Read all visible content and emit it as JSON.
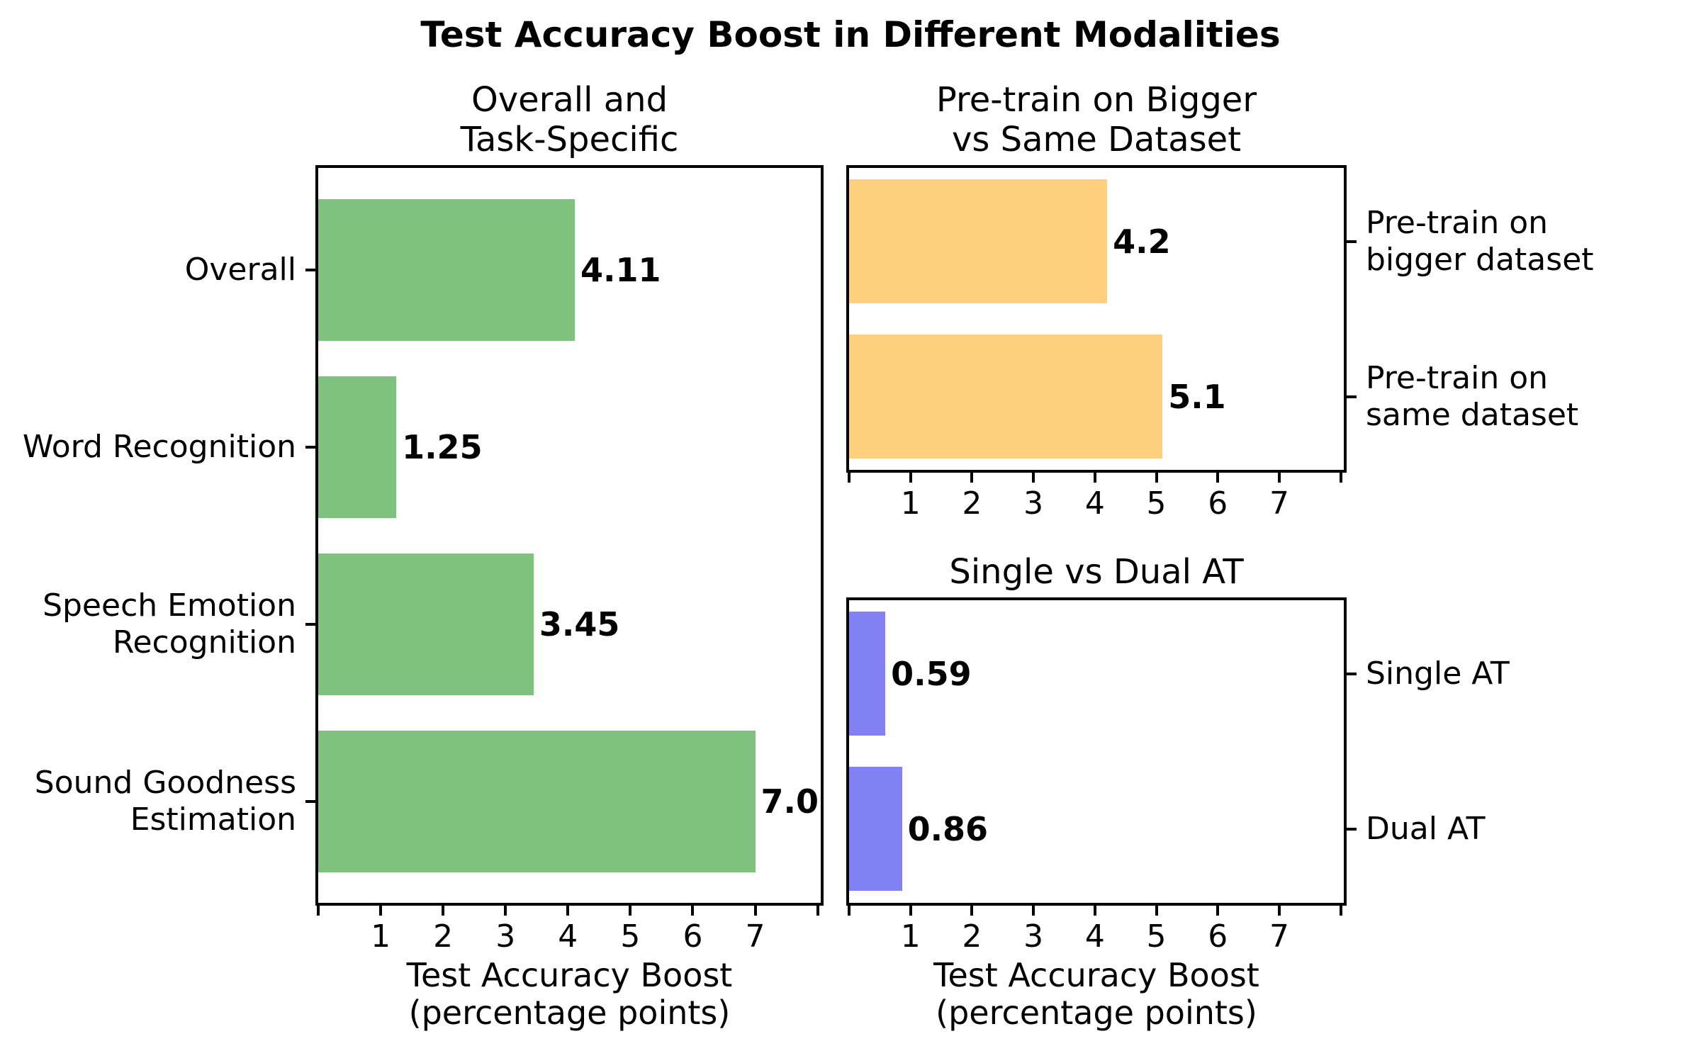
{
  "figure": {
    "title": "Test Accuracy Boost in Different Modalities",
    "background_color": "#ffffff",
    "text_color": "#000000"
  },
  "chart_data": [
    {
      "id": "overall-task-specific",
      "type": "bar",
      "orientation": "horizontal",
      "title_lines": [
        "Overall and",
        "Task-Specific"
      ],
      "categories": [
        [
          "Overall"
        ],
        [
          "Word Recognition"
        ],
        [
          "Speech Emotion",
          "Recognition"
        ],
        [
          "Sound Goodness",
          "Estimation"
        ]
      ],
      "values": [
        4.11,
        1.25,
        3.45,
        7.0
      ],
      "value_labels": [
        "4.11",
        "1.25",
        "3.45",
        "7.0"
      ],
      "bar_color": "#7fc17f",
      "category_label_side": "left",
      "xtick_labels": [
        "1",
        "2",
        "3",
        "4",
        "5",
        "6",
        "7"
      ],
      "xlim": [
        0,
        8.05
      ],
      "xlabel_lines": [
        "Test Accuracy Boost",
        "(percentage points)"
      ],
      "grid": false,
      "legend": null
    },
    {
      "id": "pretrain-bigger-vs-same",
      "type": "bar",
      "orientation": "horizontal",
      "title_lines": [
        "Pre-train on Bigger",
        "vs Same Dataset"
      ],
      "categories": [
        [
          "Pre-train on",
          "bigger dataset"
        ],
        [
          "Pre-train on",
          "same dataset"
        ]
      ],
      "values": [
        4.2,
        5.1
      ],
      "value_labels": [
        "4.2",
        "5.1"
      ],
      "bar_color": "#fdcf7e",
      "category_label_side": "right",
      "xtick_labels": [
        "1",
        "2",
        "3",
        "4",
        "5",
        "6",
        "7"
      ],
      "xlim": [
        0,
        8.05
      ],
      "xlabel_lines": [],
      "grid": false,
      "legend": null
    },
    {
      "id": "single-vs-dual-at",
      "type": "bar",
      "orientation": "horizontal",
      "title_lines": [
        "Single vs Dual AT"
      ],
      "categories": [
        [
          "Single AT"
        ],
        [
          "Dual AT"
        ]
      ],
      "values": [
        0.59,
        0.86
      ],
      "value_labels": [
        "0.59",
        "0.86"
      ],
      "bar_color": "#8181f4",
      "category_label_side": "right",
      "xtick_labels": [
        "1",
        "2",
        "3",
        "4",
        "5",
        "6",
        "7"
      ],
      "xlim": [
        0,
        8.05
      ],
      "xlabel_lines": [
        "Test Accuracy Boost",
        "(percentage points)"
      ],
      "grid": false,
      "legend": null
    }
  ]
}
